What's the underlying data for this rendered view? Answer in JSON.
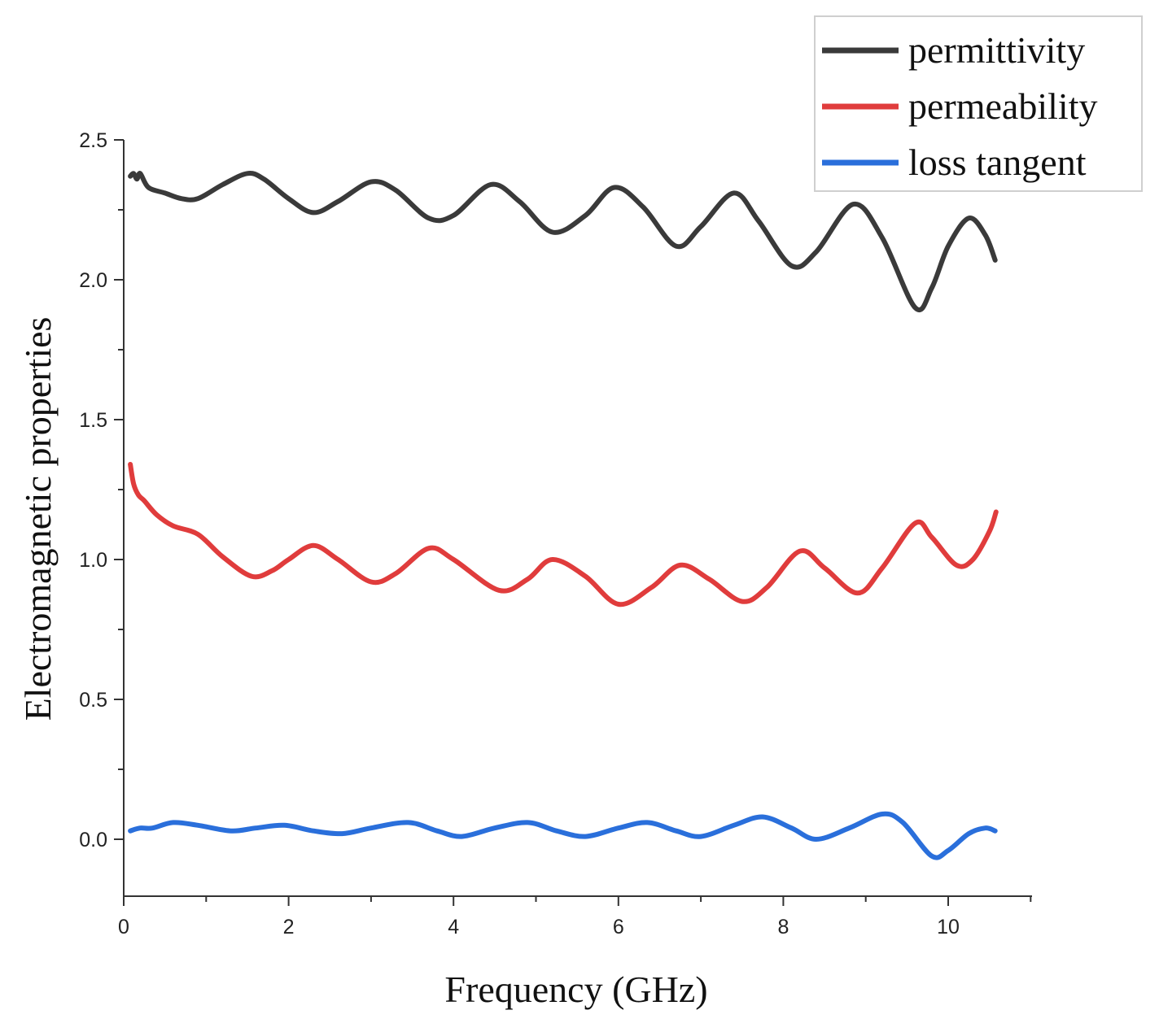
{
  "chart_data": {
    "type": "line",
    "title": "",
    "xlabel": "Frequency (GHz)",
    "ylabel": "Electromagnetic properties",
    "xlim": [
      0,
      11
    ],
    "ylim": [
      -0.2,
      2.5
    ],
    "x_ticks": [
      0,
      2,
      4,
      6,
      8,
      10
    ],
    "x_tick_labels": [
      "0",
      "2",
      "4",
      "6",
      "8",
      "10"
    ],
    "y_ticks": [
      0.0,
      0.5,
      1.0,
      1.5,
      2.0,
      2.5
    ],
    "y_tick_labels": [
      "0.0",
      "0.5",
      "1.0",
      "1.5",
      "2.0",
      "2.5"
    ],
    "grid": false,
    "legend_position": "top-right",
    "series": [
      {
        "name": "permittivity",
        "color": "#3a3a3a",
        "x": [
          0.08,
          0.12,
          0.16,
          0.2,
          0.3,
          0.5,
          0.7,
          0.9,
          1.2,
          1.5,
          1.7,
          2.0,
          2.3,
          2.6,
          3.0,
          3.3,
          3.7,
          4.0,
          4.45,
          4.8,
          5.2,
          5.6,
          5.95,
          6.3,
          6.7,
          7.0,
          7.4,
          7.7,
          8.1,
          8.4,
          8.85,
          9.2,
          9.6,
          9.8,
          10.0,
          10.25,
          10.45,
          10.57
        ],
        "values": [
          2.37,
          2.38,
          2.36,
          2.38,
          2.33,
          2.31,
          2.29,
          2.29,
          2.34,
          2.38,
          2.36,
          2.29,
          2.24,
          2.28,
          2.35,
          2.32,
          2.22,
          2.23,
          2.34,
          2.28,
          2.17,
          2.23,
          2.33,
          2.26,
          2.12,
          2.19,
          2.31,
          2.21,
          2.05,
          2.1,
          2.27,
          2.15,
          1.9,
          1.97,
          2.12,
          2.22,
          2.16,
          2.07
        ]
      },
      {
        "name": "permeability",
        "color": "#e03c3c",
        "x": [
          0.08,
          0.12,
          0.18,
          0.25,
          0.4,
          0.6,
          0.9,
          1.2,
          1.55,
          1.8,
          2.0,
          2.3,
          2.6,
          3.0,
          3.3,
          3.7,
          4.0,
          4.55,
          4.9,
          5.2,
          5.6,
          6.0,
          6.4,
          6.75,
          7.1,
          7.5,
          7.8,
          8.2,
          8.5,
          8.9,
          9.2,
          9.6,
          9.8,
          10.1,
          10.3,
          10.5,
          10.58
        ],
        "values": [
          1.34,
          1.27,
          1.23,
          1.21,
          1.16,
          1.12,
          1.09,
          1.01,
          0.94,
          0.96,
          1.0,
          1.05,
          1.0,
          0.92,
          0.95,
          1.04,
          1.0,
          0.89,
          0.93,
          1.0,
          0.94,
          0.84,
          0.9,
          0.98,
          0.93,
          0.85,
          0.9,
          1.03,
          0.97,
          0.88,
          0.97,
          1.13,
          1.08,
          0.98,
          1.0,
          1.1,
          1.17
        ]
      },
      {
        "name": "loss tangent",
        "color": "#2a6fdb",
        "x": [
          0.08,
          0.2,
          0.35,
          0.6,
          0.9,
          1.3,
          1.6,
          1.95,
          2.3,
          2.65,
          3.0,
          3.45,
          3.8,
          4.1,
          4.5,
          4.9,
          5.25,
          5.6,
          6.0,
          6.35,
          6.7,
          7.0,
          7.4,
          7.75,
          8.1,
          8.4,
          8.8,
          9.2,
          9.45,
          9.8,
          10.0,
          10.25,
          10.45,
          10.57
        ],
        "values": [
          0.03,
          0.04,
          0.04,
          0.06,
          0.05,
          0.03,
          0.04,
          0.05,
          0.03,
          0.02,
          0.04,
          0.06,
          0.03,
          0.01,
          0.04,
          0.06,
          0.03,
          0.01,
          0.04,
          0.06,
          0.03,
          0.01,
          0.05,
          0.08,
          0.04,
          0.0,
          0.04,
          0.09,
          0.06,
          -0.06,
          -0.04,
          0.02,
          0.04,
          0.03
        ]
      }
    ]
  }
}
